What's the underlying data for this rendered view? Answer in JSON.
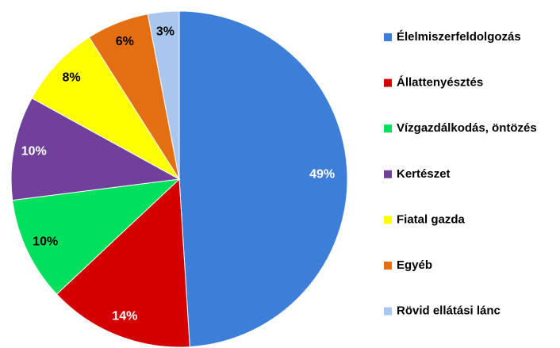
{
  "chart_data": {
    "type": "pie",
    "categories": [
      "Élelmiszerfeldolgozás",
      "Állattenyésztés",
      "Vízgazdálkodás, öntözés",
      "Kertészet",
      "Fiatal gazda",
      "Egyéb",
      "Rövid ellátási lánc"
    ],
    "values": [
      49,
      14,
      10,
      10,
      8,
      6,
      3
    ],
    "value_labels": [
      "49%",
      "14%",
      "10%",
      "10%",
      "8%",
      "6%",
      "3%"
    ],
    "colors": [
      "#3d7fd8",
      "#d40000",
      "#00e05c",
      "#70409a",
      "#ffff00",
      "#e36f12",
      "#a9c6ef"
    ],
    "label_colors": [
      "#ffffff",
      "#ffffff",
      "#000000",
      "#ffffff",
      "#000000",
      "#000000",
      "#000000"
    ],
    "legend": "right"
  }
}
